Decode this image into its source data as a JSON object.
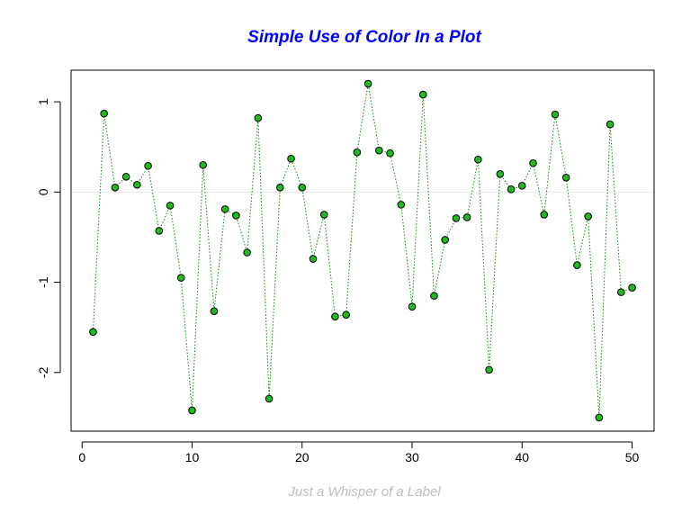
{
  "chart_data": {
    "type": "line",
    "title": "Simple Use of Color In a Plot",
    "xlabel": "Just a Whisper of a Label",
    "ylabel": "",
    "xlim": [
      -1,
      52
    ],
    "ylim": [
      -2.65,
      1.35
    ],
    "x_ticks": [
      0,
      10,
      20,
      30,
      40,
      50
    ],
    "y_ticks": [
      -2,
      -1,
      0,
      1
    ],
    "reference_line_y": 0,
    "grid": false,
    "line_style": "dotted",
    "series": [
      {
        "x": [
          1,
          2,
          3,
          4,
          5,
          6,
          7,
          8,
          9,
          10,
          11,
          12,
          13,
          14,
          15,
          16,
          17,
          18,
          19,
          20,
          21,
          22,
          23,
          24,
          25,
          26,
          27,
          28,
          29,
          30,
          31,
          32,
          33,
          34,
          35,
          36,
          37,
          38,
          39,
          40,
          41,
          42,
          43,
          44,
          45,
          46,
          47,
          48,
          49,
          50
        ],
        "values": [
          -1.55,
          0.87,
          0.05,
          0.17,
          0.08,
          0.29,
          -0.43,
          -0.15,
          -0.95,
          -2.42,
          0.3,
          -1.32,
          -0.19,
          -0.26,
          -0.67,
          0.82,
          -2.29,
          0.05,
          0.37,
          0.05,
          -0.74,
          -0.25,
          -1.38,
          -1.36,
          0.44,
          1.2,
          0.46,
          0.43,
          -0.14,
          -1.27,
          1.08,
          -1.15,
          -0.53,
          -0.29,
          -0.28,
          0.36,
          -1.97,
          0.2,
          0.03,
          0.07,
          0.32,
          -0.25,
          0.86,
          0.16,
          -0.81,
          -0.27,
          -2.5,
          0.75,
          -1.11,
          -1.06
        ]
      }
    ],
    "colors": {
      "title": "#0000ff",
      "xlabel": "#bebebe",
      "line": "#008b00",
      "point_fill": "#22b822",
      "point_stroke": "#000000",
      "reference_line": "#e6e6e6",
      "axis": "#000000"
    }
  }
}
